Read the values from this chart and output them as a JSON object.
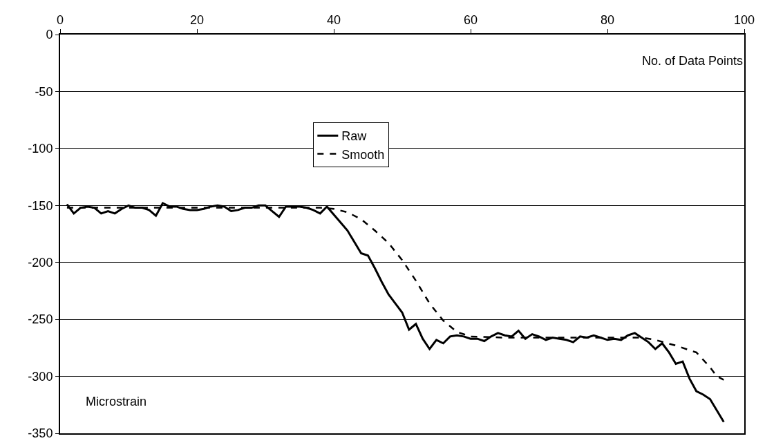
{
  "chart_data": {
    "type": "line",
    "xlabel": "No. of Data Points",
    "ylabel": "Microstrain",
    "xlim": [
      0,
      100
    ],
    "xticks": [
      0,
      20,
      40,
      60,
      80,
      100
    ],
    "ylim": [
      -350,
      0
    ],
    "yticks": [
      -350,
      -300,
      -250,
      -200,
      -150,
      -100,
      -50,
      0
    ],
    "grid": "y",
    "legend": "top",
    "marker": "none",
    "series": [
      {
        "name": "Raw",
        "color": "#000000",
        "line_style": "solid",
        "x": [
          1,
          2,
          3,
          4,
          5,
          6,
          7,
          8,
          9,
          10,
          11,
          12,
          13,
          14,
          15,
          16,
          17,
          18,
          19,
          20,
          21,
          22,
          23,
          24,
          25,
          26,
          27,
          28,
          29,
          30,
          31,
          32,
          33,
          34,
          35,
          36,
          37,
          38,
          39,
          40,
          41,
          42,
          43,
          44,
          45,
          46,
          47,
          48,
          49,
          50,
          51,
          52,
          53,
          54,
          55,
          56,
          57,
          58,
          59,
          60,
          61,
          62,
          63,
          64,
          65,
          66,
          67,
          68,
          69,
          70,
          71,
          72,
          73,
          74,
          75,
          76,
          77,
          78,
          79,
          80,
          81,
          82,
          83,
          84,
          85,
          86,
          87,
          88,
          89,
          90,
          91,
          92,
          93,
          94,
          95,
          96,
          97
        ],
        "values": [
          -149,
          -157,
          -152,
          -151,
          -152,
          -157,
          -155,
          -157,
          -153,
          -150,
          -152,
          -152,
          -154,
          -159,
          -148,
          -151,
          -151,
          -153,
          -154,
          -154,
          -153,
          -151,
          -150,
          -151,
          -155,
          -154,
          -152,
          -152,
          -150,
          -150,
          -155,
          -160,
          -151,
          -151,
          -151,
          -152,
          -154,
          -157,
          -151,
          -158,
          -165,
          -172,
          -182,
          -192,
          -194,
          -205,
          -217,
          -228,
          -236,
          -244,
          -259,
          -254,
          -267,
          -276,
          -268,
          -271,
          -265,
          -264,
          -265,
          -267,
          -267,
          -269,
          -265,
          -262,
          -264,
          -265,
          -260,
          -267,
          -263,
          -265,
          -268,
          -266,
          -267,
          -268,
          -270,
          -265,
          -266,
          -264,
          -266,
          -268,
          -267,
          -268,
          -264,
          -262,
          -266,
          -270,
          -276,
          -271,
          -279,
          -289,
          -287,
          -302,
          -313,
          -316,
          -320,
          -330,
          -340
        ]
      },
      {
        "name": "Smooth",
        "color": "#000000",
        "line_style": "dashed",
        "x": [
          1,
          10,
          20,
          30,
          38,
          40,
          42,
          44,
          46,
          48,
          50,
          52,
          54,
          56,
          58,
          60,
          65,
          70,
          75,
          80,
          85,
          87,
          90,
          92,
          93,
          95,
          96,
          97
        ],
        "values": [
          -152,
          -152,
          -152,
          -152,
          -152,
          -153,
          -156,
          -162,
          -172,
          -183,
          -198,
          -216,
          -236,
          -251,
          -261,
          -265,
          -266,
          -266,
          -266,
          -266,
          -266,
          -268,
          -273,
          -277,
          -279,
          -292,
          -300,
          -303
        ]
      }
    ]
  }
}
